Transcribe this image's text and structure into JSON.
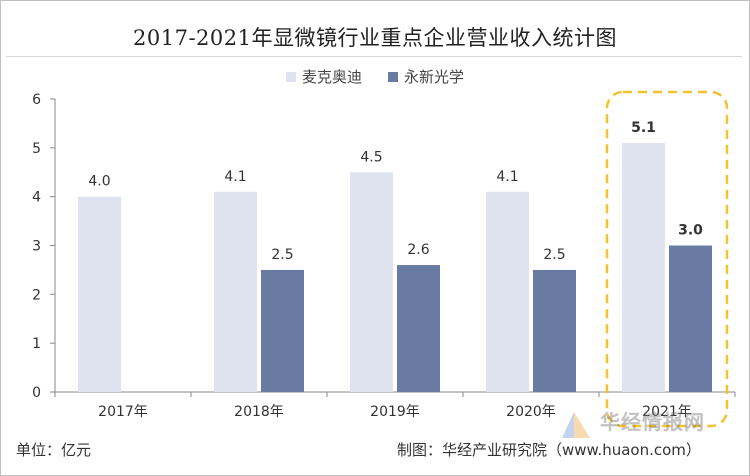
{
  "title": "2017-2021年显微镜行业重点企业营业收入统计图",
  "footer": {
    "unit": "单位：亿元",
    "source": "制图：华经产业研究院（www.huaon.com）"
  },
  "watermark": {
    "brand": "华经情报网"
  },
  "colors": {
    "series1": "#dfe3ef",
    "series2": "#6a7ba3",
    "highlight": "#f2c230",
    "axis": "#888888"
  },
  "chart_data": {
    "type": "bar",
    "categories": [
      "2017年",
      "2018年",
      "2019年",
      "2020年",
      "2021年"
    ],
    "series": [
      {
        "name": "麦克奥迪",
        "values": [
          4.0,
          4.1,
          4.5,
          4.1,
          5.1
        ],
        "labels": [
          "4.0",
          "4.1",
          "4.5",
          "4.1",
          "5.1"
        ]
      },
      {
        "name": "永新光学",
        "values": [
          null,
          2.5,
          2.6,
          2.5,
          3.0
        ],
        "labels": [
          "",
          "2.5",
          "2.6",
          "2.5",
          "3.0"
        ]
      }
    ],
    "yticks": [
      "0",
      "1",
      "2",
      "3",
      "4",
      "5",
      "6"
    ],
    "ylim": [
      0,
      6
    ],
    "legend_position": "top",
    "highlight_category": "2021年"
  }
}
